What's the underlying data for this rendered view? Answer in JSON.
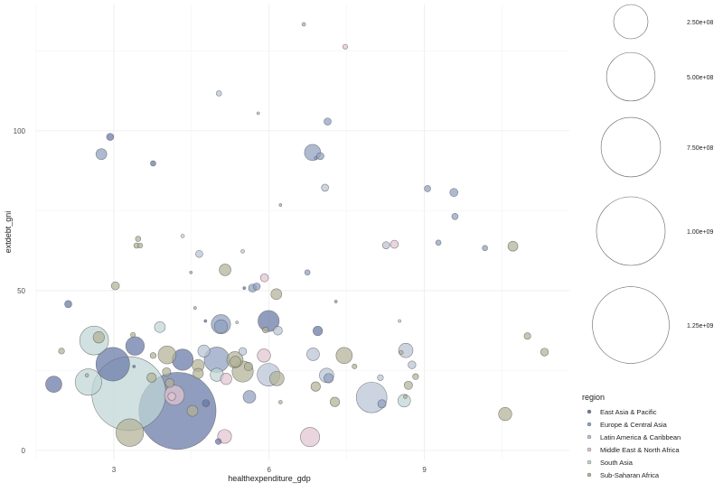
{
  "chart_data": {
    "type": "scatter",
    "xlabel": "healthexpenditure_gdp",
    "ylabel": "extdebt_gni",
    "xlim": [
      1.5,
      11.8
    ],
    "ylim": [
      -3.1,
      139.5
    ],
    "x_ticks": [
      3,
      6,
      9
    ],
    "y_ticks": [
      0,
      50,
      100
    ],
    "grid": true,
    "size_legend": {
      "values": [
        250000000,
        500000000,
        750000000,
        1000000000,
        1250000000
      ],
      "labels": [
        "2.50e+08",
        "5.00e+08",
        "7.50e+08",
        "1.00e+09",
        "1.25e+09"
      ]
    },
    "color_legend": {
      "title": "region",
      "position": "right",
      "entries": [
        {
          "label": "East Asia & Pacific",
          "color": "#6677a6"
        },
        {
          "label": "Europe & Central Asia",
          "color": "#8ea0c0"
        },
        {
          "label": "Latin America & Caribbean",
          "color": "#b9c4d5"
        },
        {
          "label": "Middle East & North Africa",
          "color": "#e2c4d1"
        },
        {
          "label": "South Asia",
          "color": "#bfd6d6"
        },
        {
          "label": "Sub-Saharan Africa",
          "color": "#b2b296"
        }
      ]
    },
    "points": [
      {
        "x": 6.67,
        "y": 133.3,
        "size": 2800000.0,
        "region": 5
      },
      {
        "x": 7.47,
        "y": 126.3,
        "size": 5000000.0,
        "region": 3
      },
      {
        "x": 5.03,
        "y": 111.7,
        "size": 6200000.0,
        "region": 2
      },
      {
        "x": 5.79,
        "y": 105.5,
        "size": 1600000.0,
        "region": 2
      },
      {
        "x": 7.13,
        "y": 102.9,
        "size": 11000000.0,
        "region": 1
      },
      {
        "x": 2.93,
        "y": 98.1,
        "size": 11000000.0,
        "region": 0
      },
      {
        "x": 2.76,
        "y": 92.7,
        "size": 25000000.0,
        "region": 1
      },
      {
        "x": 3.76,
        "y": 89.8,
        "size": 6200000.0,
        "region": 0
      },
      {
        "x": 6.84,
        "y": 93.2,
        "size": 56000000.0,
        "region": 1
      },
      {
        "x": 6.99,
        "y": 92.1,
        "size": 11000000.0,
        "region": 1
      },
      {
        "x": 6.9,
        "y": 91.5,
        "size": 1600000.0,
        "region": 1
      },
      {
        "x": 7.08,
        "y": 82.2,
        "size": 11000000.0,
        "region": 2
      },
      {
        "x": 9.06,
        "y": 81.9,
        "size": 8500000.0,
        "region": 1
      },
      {
        "x": 9.57,
        "y": 80.7,
        "size": 14000000.0,
        "region": 1
      },
      {
        "x": 9.59,
        "y": 73.2,
        "size": 8500000.0,
        "region": 1
      },
      {
        "x": 6.22,
        "y": 76.8,
        "size": 1600000.0,
        "region": 5
      },
      {
        "x": 4.33,
        "y": 67.1,
        "size": 2800000.0,
        "region": 3
      },
      {
        "x": 3.47,
        "y": 66.2,
        "size": 6200000.0,
        "region": 5
      },
      {
        "x": 3.44,
        "y": 64.1,
        "size": 6200000.0,
        "region": 5
      },
      {
        "x": 3.51,
        "y": 64.1,
        "size": 5000000.0,
        "region": 5
      },
      {
        "x": 4.65,
        "y": 61.5,
        "size": 11000000.0,
        "region": 2
      },
      {
        "x": 5.49,
        "y": 62.3,
        "size": 2800000.0,
        "region": 2
      },
      {
        "x": 4.49,
        "y": 55.7,
        "size": 1600000.0,
        "region": 5
      },
      {
        "x": 5.15,
        "y": 56.5,
        "size": 29000000.0,
        "region": 5
      },
      {
        "x": 5.91,
        "y": 54.0,
        "size": 14000000.0,
        "region": 3
      },
      {
        "x": 5.52,
        "y": 50.8,
        "size": 1600000.0,
        "region": 0
      },
      {
        "x": 5.68,
        "y": 50.8,
        "size": 14000000.0,
        "region": 1
      },
      {
        "x": 5.76,
        "y": 51.3,
        "size": 11000000.0,
        "region": 1
      },
      {
        "x": 6.14,
        "y": 48.9,
        "size": 25000000.0,
        "region": 5
      },
      {
        "x": 3.03,
        "y": 51.5,
        "size": 14000000.0,
        "region": 5
      },
      {
        "x": 2.12,
        "y": 45.8,
        "size": 11000000.0,
        "region": 0
      },
      {
        "x": 8.26,
        "y": 64.2,
        "size": 11000000.0,
        "region": 2
      },
      {
        "x": 8.42,
        "y": 64.5,
        "size": 14000000.0,
        "region": 3
      },
      {
        "x": 9.27,
        "y": 65.0,
        "size": 6200000.0,
        "region": 1
      },
      {
        "x": 10.17,
        "y": 63.3,
        "size": 6200000.0,
        "region": 1
      },
      {
        "x": 10.71,
        "y": 63.9,
        "size": 21000000.0,
        "region": 5
      },
      {
        "x": 6.74,
        "y": 55.7,
        "size": 6200000.0,
        "region": 1
      },
      {
        "x": 7.29,
        "y": 46.6,
        "size": 1600000.0,
        "region": 1
      },
      {
        "x": 2.62,
        "y": 34.4,
        "size": 177000000.0,
        "region": 4
      },
      {
        "x": 2.71,
        "y": 35.4,
        "size": 27500000.0,
        "region": 5
      },
      {
        "x": 1.99,
        "y": 31.1,
        "size": 7500000.0,
        "region": 5
      },
      {
        "x": 1.84,
        "y": 20.7,
        "size": 56000000.0,
        "region": 0
      },
      {
        "x": 2.51,
        "y": 21.4,
        "size": 150000000.0,
        "region": 4
      },
      {
        "x": 2.48,
        "y": 23.5,
        "size": 2800000.0,
        "region": 5
      },
      {
        "x": 2.98,
        "y": 27.0,
        "size": 240000000.0,
        "region": 0
      },
      {
        "x": 3.29,
        "y": 17.8,
        "size": 1160000000.0,
        "region": 4
      },
      {
        "x": 3.31,
        "y": 5.6,
        "size": 162000000.0,
        "region": 5
      },
      {
        "x": 3.37,
        "y": 36.2,
        "size": 5000000.0,
        "region": 5
      },
      {
        "x": 3.41,
        "y": 32.7,
        "size": 73000000.0,
        "region": 0
      },
      {
        "x": 3.39,
        "y": 26.3,
        "size": 1600000.0,
        "region": 0
      },
      {
        "x": 3.89,
        "y": 38.6,
        "size": 25000000.0,
        "region": 4
      },
      {
        "x": 3.76,
        "y": 29.7,
        "size": 7500000.0,
        "region": 5
      },
      {
        "x": 4.03,
        "y": 29.9,
        "size": 69000000.0,
        "region": 5
      },
      {
        "x": 4.33,
        "y": 28.4,
        "size": 95000000.0,
        "region": 0
      },
      {
        "x": 3.73,
        "y": 22.8,
        "size": 19000000.0,
        "region": 5
      },
      {
        "x": 4.02,
        "y": 24.6,
        "size": 15000000.0,
        "region": 5
      },
      {
        "x": 4.08,
        "y": 21.1,
        "size": 17000000.0,
        "region": 5
      },
      {
        "x": 4.23,
        "y": 12.4,
        "size": 1260000000.0,
        "region": 0
      },
      {
        "x": 4.17,
        "y": 17.3,
        "size": 84000000.0,
        "region": 3
      },
      {
        "x": 4.12,
        "y": 16.9,
        "size": 13000000.0,
        "region": 3
      },
      {
        "x": 4.52,
        "y": 12.4,
        "size": 25000000.0,
        "region": 5
      },
      {
        "x": 4.78,
        "y": 14.8,
        "size": 11000000.0,
        "region": 0
      },
      {
        "x": 4.63,
        "y": 26.6,
        "size": 31000000.0,
        "region": 5
      },
      {
        "x": 4.63,
        "y": 24.1,
        "size": 22500000.0,
        "region": 5
      },
      {
        "x": 4.57,
        "y": 44.6,
        "size": 1600000.0,
        "region": 5
      },
      {
        "x": 4.77,
        "y": 40.5,
        "size": 1600000.0,
        "region": 0
      },
      {
        "x": 5.07,
        "y": 39.5,
        "size": 79000000.0,
        "region": 1
      },
      {
        "x": 5.07,
        "y": 38.8,
        "size": 37000000.0,
        "region": 1
      },
      {
        "x": 5.38,
        "y": 40.1,
        "size": 1600000.0,
        "region": 2
      },
      {
        "x": 5.99,
        "y": 40.5,
        "size": 95000000.0,
        "region": 0
      },
      {
        "x": 5.93,
        "y": 37.7,
        "size": 7500000.0,
        "region": 5
      },
      {
        "x": 6.17,
        "y": 37.5,
        "size": 17000000.0,
        "region": 2
      },
      {
        "x": 6.94,
        "y": 37.4,
        "size": 19000000.0,
        "region": 0
      },
      {
        "x": 4.74,
        "y": 31.1,
        "size": 31000000.0,
        "region": 2
      },
      {
        "x": 4.99,
        "y": 28.4,
        "size": 136000000.0,
        "region": 1
      },
      {
        "x": 5.34,
        "y": 28.4,
        "size": 56000000.0,
        "region": 5
      },
      {
        "x": 5.35,
        "y": 27.8,
        "size": 25000000.0,
        "region": 5
      },
      {
        "x": 5.49,
        "y": 31.0,
        "size": 13000000.0,
        "region": 2
      },
      {
        "x": 4.99,
        "y": 23.7,
        "size": 37000000.0,
        "region": 4
      },
      {
        "x": 5.17,
        "y": 22.4,
        "size": 27500000.0,
        "region": 3
      },
      {
        "x": 5.49,
        "y": 24.7,
        "size": 95000000.0,
        "region": 5
      },
      {
        "x": 5.6,
        "y": 26.3,
        "size": 15000000.0,
        "region": 5
      },
      {
        "x": 5.9,
        "y": 29.7,
        "size": 37000000.0,
        "region": 3
      },
      {
        "x": 5.99,
        "y": 23.7,
        "size": 110000000.0,
        "region": 2
      },
      {
        "x": 6.15,
        "y": 22.5,
        "size": 44000000.0,
        "region": 5
      },
      {
        "x": 5.62,
        "y": 16.8,
        "size": 34000000.0,
        "region": 1
      },
      {
        "x": 6.22,
        "y": 15.1,
        "size": 2800000.0,
        "region": 5
      },
      {
        "x": 5.14,
        "y": 4.4,
        "size": 41000000.0,
        "region": 3
      },
      {
        "x": 5.02,
        "y": 2.8,
        "size": 7500000.0,
        "region": 0
      },
      {
        "x": 6.79,
        "y": 4.2,
        "size": 79000000.0,
        "region": 3
      },
      {
        "x": 6.85,
        "y": 30.1,
        "size": 34000000.0,
        "region": 2
      },
      {
        "x": 7.45,
        "y": 29.7,
        "size": 56000000.0,
        "region": 5
      },
      {
        "x": 7.65,
        "y": 26.3,
        "size": 5000000.0,
        "region": 5
      },
      {
        "x": 7.11,
        "y": 23.5,
        "size": 44000000.0,
        "region": 2
      },
      {
        "x": 7.15,
        "y": 22.6,
        "size": 19000000.0,
        "region": 1
      },
      {
        "x": 6.9,
        "y": 20.0,
        "size": 19000000.0,
        "region": 5
      },
      {
        "x": 7.27,
        "y": 15.2,
        "size": 19000000.0,
        "region": 5
      },
      {
        "x": 8.52,
        "y": 40.5,
        "size": 1600000.0,
        "region": 4
      },
      {
        "x": 8.64,
        "y": 31.3,
        "size": 44000000.0,
        "region": 2
      },
      {
        "x": 8.55,
        "y": 30.7,
        "size": 3700000.0,
        "region": 5
      },
      {
        "x": 8.76,
        "y": 26.8,
        "size": 13000000.0,
        "region": 2
      },
      {
        "x": 8.83,
        "y": 23.1,
        "size": 7500000.0,
        "region": 5
      },
      {
        "x": 8.69,
        "y": 20.4,
        "size": 15000000.0,
        "region": 5
      },
      {
        "x": 8.61,
        "y": 15.6,
        "size": 34000000.0,
        "region": 4
      },
      {
        "x": 8.63,
        "y": 16.8,
        "size": 2800000.0,
        "region": 5
      },
      {
        "x": 7.98,
        "y": 16.6,
        "size": 200000000.0,
        "region": 2
      },
      {
        "x": 8.18,
        "y": 14.6,
        "size": 15000000.0,
        "region": 1
      },
      {
        "x": 8.15,
        "y": 22.8,
        "size": 7500000.0,
        "region": 2
      },
      {
        "x": 10.99,
        "y": 35.8,
        "size": 9500000.0,
        "region": 5
      },
      {
        "x": 11.32,
        "y": 30.8,
        "size": 13000000.0,
        "region": 5
      },
      {
        "x": 10.56,
        "y": 11.4,
        "size": 37000000.0,
        "region": 5
      }
    ]
  }
}
